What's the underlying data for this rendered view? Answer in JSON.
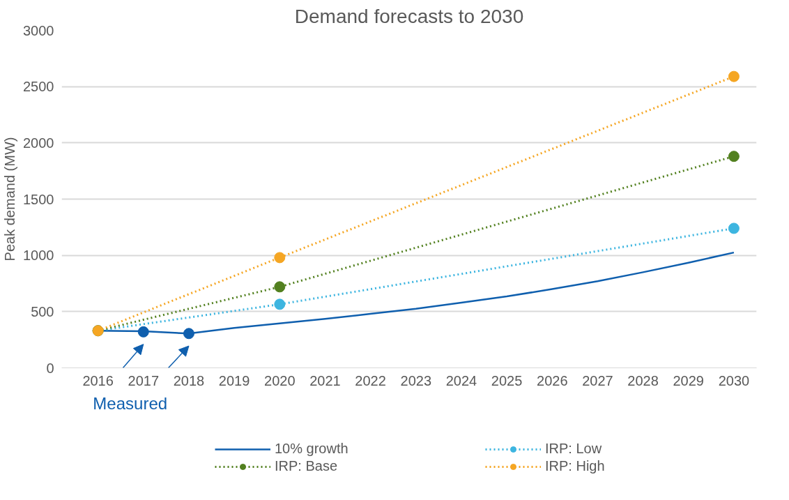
{
  "chart_data": {
    "type": "line",
    "title": "Demand forecasts to 2030",
    "ylabel": "Peak demand (MW)",
    "x": [
      2016,
      2017,
      2018,
      2019,
      2020,
      2021,
      2022,
      2023,
      2024,
      2025,
      2026,
      2027,
      2028,
      2029,
      2030
    ],
    "series": [
      {
        "name": "10% growth",
        "color": "#0f5fae",
        "marker": "none",
        "line_style": "solid",
        "values": [
          330,
          325,
          305,
          355,
          395,
          435,
          480,
          525,
          580,
          635,
          700,
          770,
          850,
          935,
          1025
        ]
      },
      {
        "type": "scatter",
        "color": "#0f5fae",
        "marker": "circle",
        "x": [
          2017,
          2018
        ],
        "values": [
          320,
          305
        ]
      },
      {
        "name": "IRP: Low",
        "color": "#3db5e0",
        "marker": "circle",
        "line_style": "dotted",
        "x": [
          2016,
          2020,
          2030
        ],
        "values": [
          330,
          565,
          1240
        ]
      },
      {
        "name": "IRP: Base",
        "color": "#52801f",
        "marker": "circle",
        "line_style": "dotted",
        "x": [
          2016,
          2020,
          2030
        ],
        "values": [
          330,
          720,
          1880
        ]
      },
      {
        "name": "IRP: High",
        "color": "#f5a623",
        "marker": "circle",
        "line_style": "dotted",
        "x": [
          2016,
          2020,
          2030
        ],
        "values": [
          330,
          980,
          2590
        ]
      }
    ],
    "xlim": [
      2015.2,
      2030.5
    ],
    "xticks": [
      2016,
      2017,
      2018,
      2019,
      2020,
      2021,
      2022,
      2023,
      2024,
      2025,
      2026,
      2027,
      2028,
      2029,
      2030
    ],
    "ylim": [
      0,
      3000
    ],
    "yticks": [
      0,
      500,
      1000,
      1500,
      2000,
      2500,
      3000
    ],
    "grid": "y",
    "legend": "bottom",
    "annotations": [
      "Measured"
    ]
  }
}
